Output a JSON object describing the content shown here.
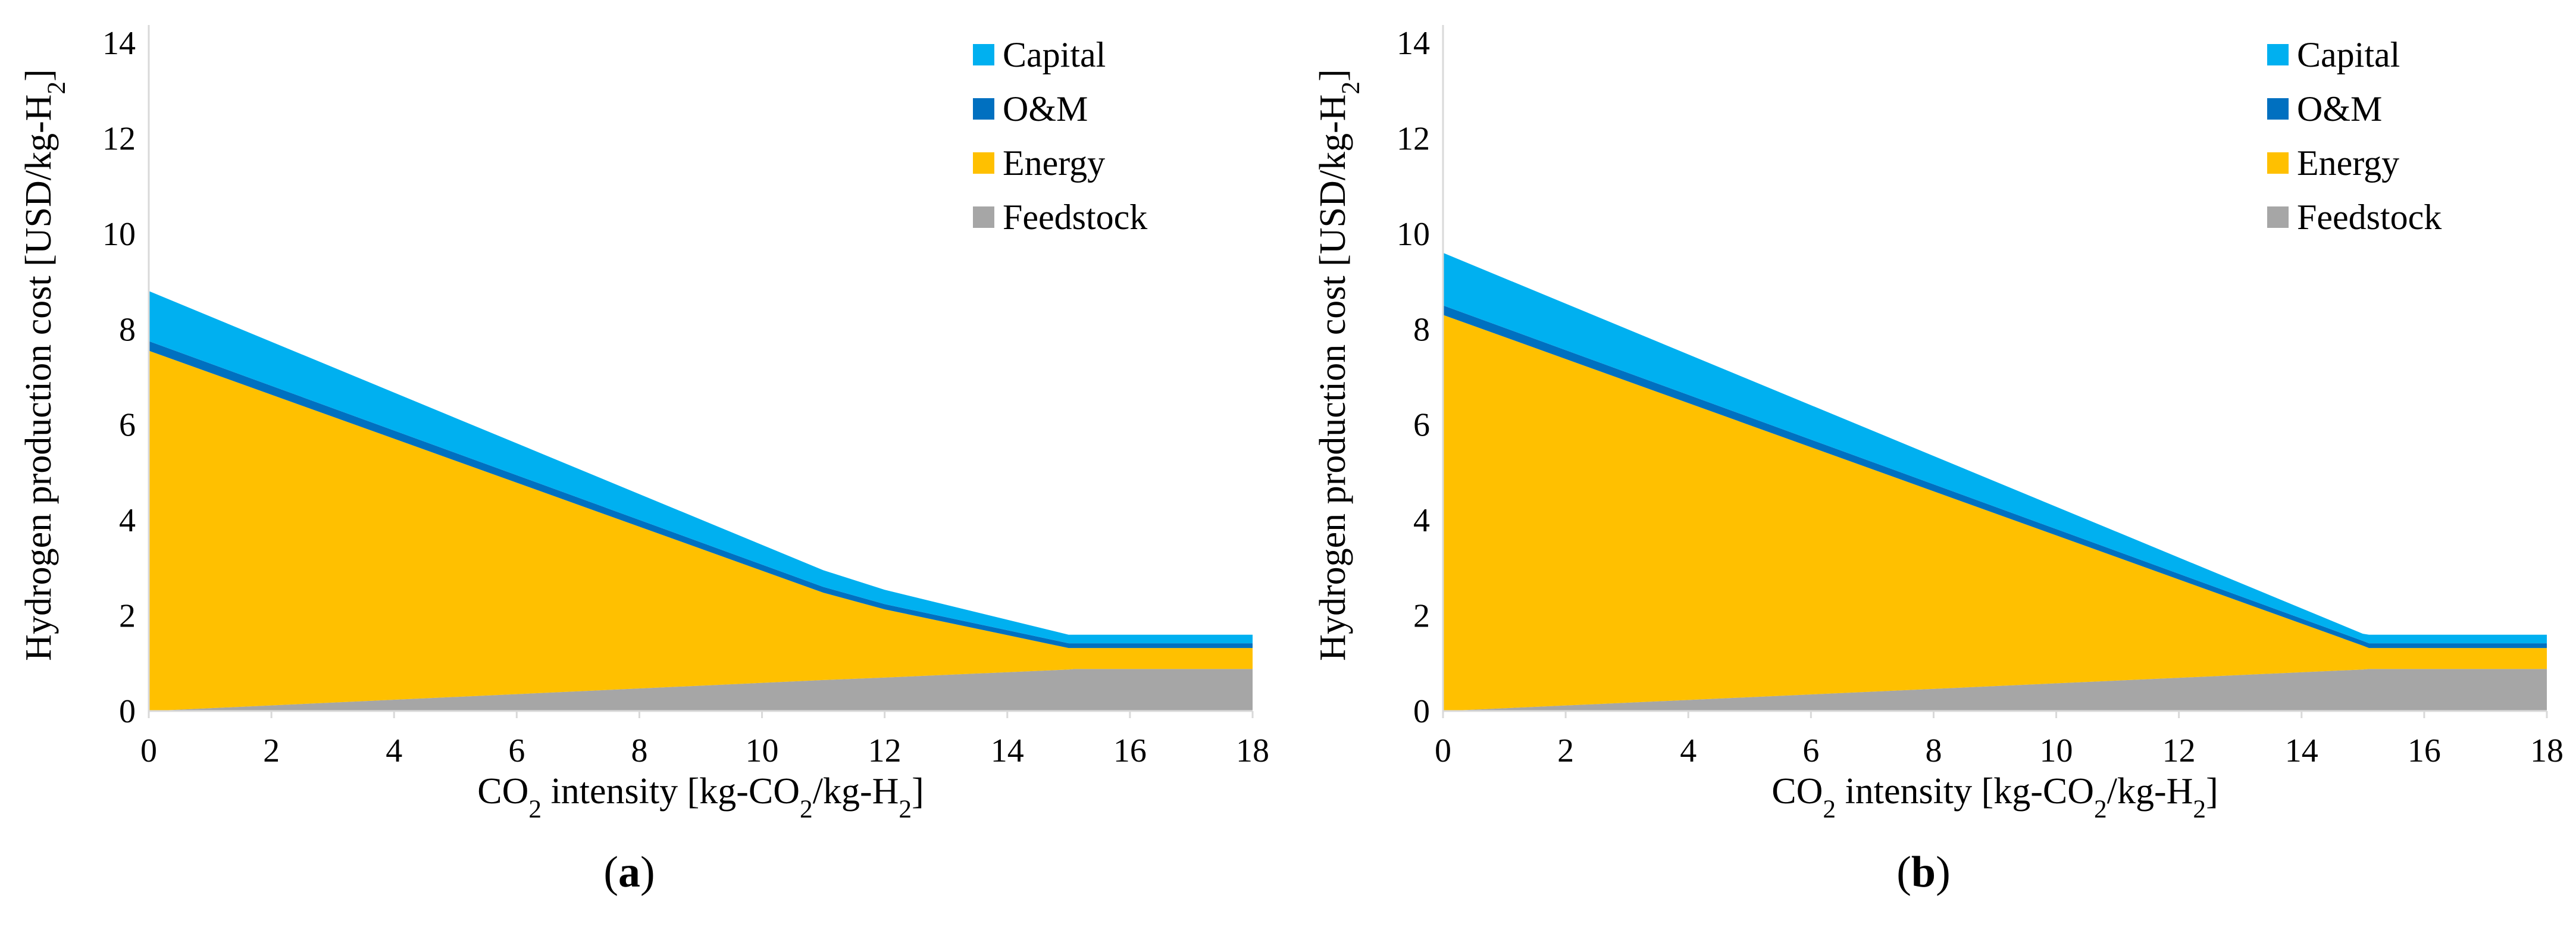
{
  "colors": {
    "capital": "#00B0F0",
    "om": "#0070C0",
    "energy": "#FFC000",
    "feedstock": "#A6A6A6",
    "axis": "#D9D9D9"
  },
  "chart_data": [
    {
      "type": "area",
      "panel_label": "a",
      "stacked": true,
      "xlabel": {
        "pre": "CO",
        "sub1": "2",
        "mid": " intensity [kg-CO",
        "sub2": "2",
        "mid2": "/kg-H",
        "sub3": "2",
        "post": "]"
      },
      "ylabel": {
        "pre": "Hydrogen production cost [USD/kg-H",
        "sub": "2",
        "post": "]"
      },
      "xlim": [
        0,
        18
      ],
      "ylim": [
        0,
        14
      ],
      "x_ticks": [
        "0",
        "2",
        "4",
        "6",
        "8",
        "10",
        "12",
        "14",
        "16",
        "18"
      ],
      "y_ticks": [
        "0",
        "2",
        "4",
        "6",
        "8",
        "10",
        "12",
        "14"
      ],
      "x": [
        0,
        11,
        12,
        15,
        15.1,
        18
      ],
      "series": [
        {
          "name": "Feedstock",
          "key": "feedstock",
          "values": [
            0,
            0.65,
            0.7,
            0.87,
            0.88,
            0.88
          ]
        },
        {
          "name": "Energy",
          "key": "energy",
          "values": [
            7.55,
            1.83,
            1.43,
            0.45,
            0.44,
            0.44
          ]
        },
        {
          "name": "O&M",
          "key": "om",
          "values": [
            0.2,
            0.12,
            0.11,
            0.1,
            0.1,
            0.1
          ]
        },
        {
          "name": "Capital",
          "key": "capital",
          "values": [
            1.05,
            0.35,
            0.3,
            0.18,
            0.18,
            0.18
          ]
        }
      ],
      "legend": [
        "Capital",
        "O&M",
        "Energy",
        "Feedstock"
      ],
      "legend_position": "top-right"
    },
    {
      "type": "area",
      "panel_label": "b",
      "stacked": true,
      "xlabel": {
        "pre": "CO",
        "sub1": "2",
        "mid": " intensity [kg-CO",
        "sub2": "2",
        "mid2": "/kg-H",
        "sub3": "2",
        "post": "]"
      },
      "ylabel": {
        "pre": "Hydrogen production cost [USD/kg-H",
        "sub": "2",
        "post": "]"
      },
      "xlim": [
        0,
        18
      ],
      "ylim": [
        0,
        14
      ],
      "x_ticks": [
        "0",
        "2",
        "4",
        "6",
        "8",
        "10",
        "12",
        "14",
        "16",
        "18"
      ],
      "y_ticks": [
        "0",
        "2",
        "4",
        "6",
        "8",
        "10",
        "12",
        "14"
      ],
      "x": [
        0,
        15,
        15.1,
        18
      ],
      "series": [
        {
          "name": "Feedstock",
          "key": "feedstock",
          "values": [
            0,
            0.87,
            0.88,
            0.88
          ]
        },
        {
          "name": "Energy",
          "key": "energy",
          "values": [
            8.3,
            0.5,
            0.44,
            0.44
          ]
        },
        {
          "name": "O&M",
          "key": "om",
          "values": [
            0.2,
            0.1,
            0.1,
            0.1
          ]
        },
        {
          "name": "Capital",
          "key": "capital",
          "values": [
            1.1,
            0.15,
            0.18,
            0.18
          ]
        }
      ],
      "legend": [
        "Capital",
        "O&M",
        "Energy",
        "Feedstock"
      ],
      "legend_position": "top-right"
    }
  ]
}
